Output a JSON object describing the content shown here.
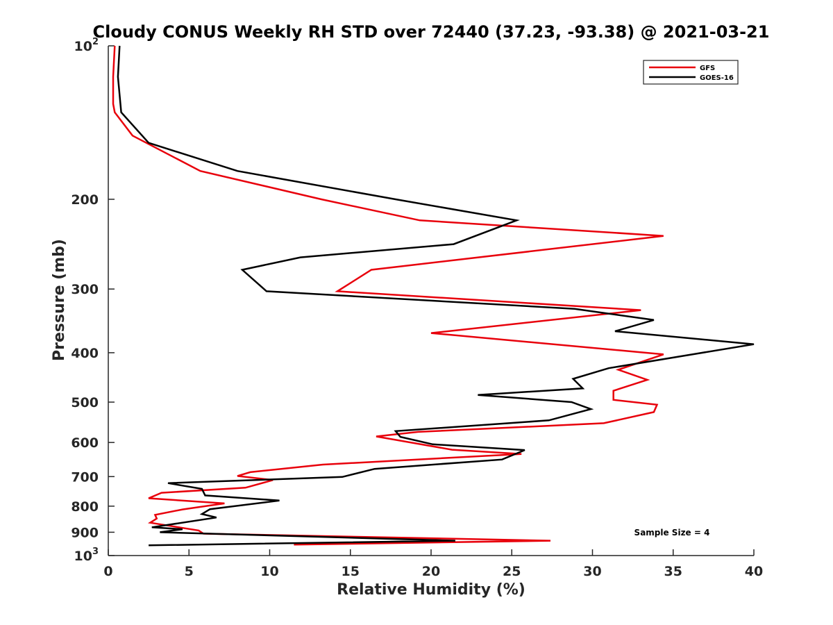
{
  "chart_data": {
    "type": "line",
    "title": "Cloudy CONUS Weekly RH STD over 72440 (37.23, -93.38) @ 2021-03-21",
    "xlabel": "Relative Humidity (%)",
    "ylabel": "Pressure (mb)",
    "xlim": [
      0,
      40
    ],
    "ylim": [
      100,
      1000
    ],
    "y_scale": "log",
    "y_reversed": true,
    "grid": false,
    "legend_position": "top-right",
    "annotation": "Sample Size = 4",
    "x_ticks": [
      "0",
      "5",
      "10",
      "15",
      "20",
      "25",
      "30",
      "35",
      "40"
    ],
    "x_tick_values": [
      0,
      5,
      10,
      15,
      20,
      25,
      30,
      35,
      40
    ],
    "y_ticks": [
      {
        "value": 100,
        "base": "10",
        "exp": "2"
      },
      {
        "value": 200,
        "label": "200"
      },
      {
        "value": 300,
        "label": "300"
      },
      {
        "value": 400,
        "label": "400"
      },
      {
        "value": 500,
        "label": "500"
      },
      {
        "value": 600,
        "label": "600"
      },
      {
        "value": 700,
        "label": "700"
      },
      {
        "value": 800,
        "label": "800"
      },
      {
        "value": 900,
        "label": "900"
      },
      {
        "value": 1000,
        "base": "10",
        "exp": "3"
      }
    ],
    "series": [
      {
        "name": "GFS",
        "color": "#e8000b",
        "points": [
          [
            0.4,
            100
          ],
          [
            0.3,
            115
          ],
          [
            0.3,
            130
          ],
          [
            0.4,
            135
          ],
          [
            1.5,
            150
          ],
          [
            5.7,
            176
          ],
          [
            13.2,
            200
          ],
          [
            19.3,
            220
          ],
          [
            34.4,
            236
          ],
          [
            16.3,
            275
          ],
          [
            14.2,
            303
          ],
          [
            33.0,
            330
          ],
          [
            20.0,
            366
          ],
          [
            34.4,
            403
          ],
          [
            31.6,
            432
          ],
          [
            33.4,
            452
          ],
          [
            31.3,
            475
          ],
          [
            31.3,
            495
          ],
          [
            34.0,
            506
          ],
          [
            33.8,
            523
          ],
          [
            30.7,
            550
          ],
          [
            19.2,
            572
          ],
          [
            16.6,
            584
          ],
          [
            21.3,
            620
          ],
          [
            25.6,
            632
          ],
          [
            13.3,
            663
          ],
          [
            8.8,
            686
          ],
          [
            8.0,
            698
          ],
          [
            10.2,
            711
          ],
          [
            8.5,
            736
          ],
          [
            3.3,
            753
          ],
          [
            2.5,
            772
          ],
          [
            7.2,
            790
          ],
          [
            4.6,
            812
          ],
          [
            2.9,
            832
          ],
          [
            3.0,
            846
          ],
          [
            2.6,
            862
          ],
          [
            5.6,
            893
          ],
          [
            5.9,
            906
          ],
          [
            27.4,
            935
          ],
          [
            11.5,
            952
          ]
        ]
      },
      {
        "name": "GOES-16",
        "color": "#000000",
        "points": [
          [
            0.7,
            100
          ],
          [
            0.6,
            115
          ],
          [
            0.8,
            135
          ],
          [
            2.5,
            155
          ],
          [
            8.0,
            176
          ],
          [
            17.8,
            200
          ],
          [
            25.3,
            220
          ],
          [
            21.4,
            245
          ],
          [
            11.9,
            260
          ],
          [
            8.3,
            275
          ],
          [
            9.8,
            303
          ],
          [
            28.9,
            328
          ],
          [
            33.8,
            345
          ],
          [
            31.4,
            363
          ],
          [
            40.0,
            385
          ],
          [
            36.4,
            402
          ],
          [
            31.0,
            429
          ],
          [
            28.8,
            450
          ],
          [
            29.4,
            470
          ],
          [
            22.9,
            484
          ],
          [
            28.7,
            500
          ],
          [
            29.9,
            516
          ],
          [
            27.3,
            543
          ],
          [
            17.8,
            570
          ],
          [
            18.1,
            585
          ],
          [
            20.1,
            605
          ],
          [
            25.8,
            621
          ],
          [
            24.4,
            648
          ],
          [
            16.5,
            676
          ],
          [
            14.5,
            701
          ],
          [
            3.7,
            721
          ],
          [
            5.8,
            740
          ],
          [
            6.0,
            762
          ],
          [
            10.6,
            780
          ],
          [
            6.3,
            811
          ],
          [
            5.8,
            829
          ],
          [
            6.7,
            842
          ],
          [
            2.7,
            880
          ],
          [
            4.6,
            888
          ],
          [
            3.2,
            900
          ],
          [
            21.5,
            935
          ],
          [
            2.5,
            955
          ]
        ]
      }
    ]
  }
}
